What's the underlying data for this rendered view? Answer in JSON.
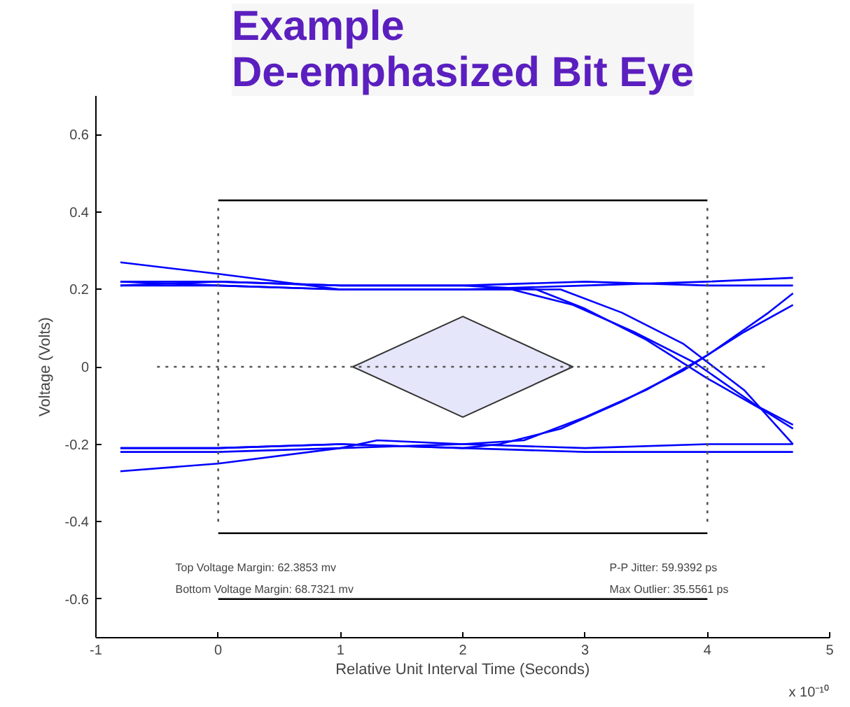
{
  "chart_data": {
    "type": "line",
    "title": "Example\nDe-emphasized Bit Eye",
    "xlabel": "Relative Unit Interval Time (Seconds)",
    "ylabel": "Voltage (Volts)",
    "xlim": [
      -1,
      5
    ],
    "xticks": [
      -1,
      0,
      1,
      2,
      3,
      4,
      5
    ],
    "ylim": [
      -0.7,
      0.7
    ],
    "yticks": [
      -0.6,
      -0.4,
      -0.2,
      0,
      0.2,
      0.4,
      0.6
    ],
    "grid": false,
    "marker": "none",
    "line_style": "solid",
    "annotations": [
      "Top Voltage Margin:    62.3853 mv",
      "Bottom Voltage Margin: 68.7321 mv",
      "P-P Jitter:      59.9392 ps",
      "Max Outlier: 35.5561 ps",
      "x 10⁻¹⁰"
    ],
    "series": [
      {
        "color": "#0000ff",
        "x": [
          -0.8,
          0,
          1,
          2,
          3,
          4,
          4.7
        ],
        "values": [
          0.27,
          0.24,
          0.2,
          0.2,
          0.21,
          0.22,
          0.23
        ]
      },
      {
        "color": "#0000ff",
        "x": [
          -0.8,
          0,
          1,
          2,
          3,
          4,
          4.7
        ],
        "values": [
          0.22,
          0.22,
          0.21,
          0.21,
          0.22,
          0.21,
          0.21
        ]
      },
      {
        "color": "#0000ff",
        "x": [
          -0.8,
          0,
          1,
          2,
          2.6,
          3,
          3.5,
          4,
          4.5,
          4.7
        ],
        "values": [
          0.21,
          0.22,
          0.21,
          0.21,
          0.2,
          0.15,
          0.07,
          -0.03,
          -0.12,
          -0.16
        ]
      },
      {
        "color": "#0000ff",
        "x": [
          -0.8,
          0,
          1,
          2,
          2.4,
          2.9,
          3.4,
          3.9,
          4.4,
          4.7
        ],
        "values": [
          0.22,
          0.21,
          0.2,
          0.2,
          0.2,
          0.16,
          0.09,
          0.01,
          -0.1,
          -0.15
        ]
      },
      {
        "color": "#0000ff",
        "x": [
          -0.8,
          0,
          1,
          2,
          2.8,
          3.3,
          3.8,
          4.3,
          4.7
        ],
        "values": [
          0.21,
          0.21,
          0.2,
          0.2,
          0.2,
          0.14,
          0.06,
          -0.06,
          -0.2
        ]
      },
      {
        "color": "#0000ff",
        "x": [
          -0.8,
          0,
          1,
          1.3,
          2,
          3,
          4,
          4.7
        ],
        "values": [
          -0.27,
          -0.25,
          -0.21,
          -0.19,
          -0.2,
          -0.21,
          -0.2,
          -0.2
        ]
      },
      {
        "color": "#0000ff",
        "x": [
          -0.8,
          0,
          1,
          2,
          3,
          4,
          4.7
        ],
        "values": [
          -0.21,
          -0.21,
          -0.2,
          -0.21,
          -0.22,
          -0.22,
          -0.22
        ]
      },
      {
        "color": "#0000ff",
        "x": [
          -0.8,
          0,
          1,
          2,
          2.3,
          2.8,
          3.3,
          3.8,
          4.3,
          4.7
        ],
        "values": [
          -0.21,
          -0.21,
          -0.2,
          -0.21,
          -0.2,
          -0.16,
          -0.09,
          -0.01,
          0.09,
          0.16
        ]
      },
      {
        "color": "#0000ff",
        "x": [
          -0.8,
          0,
          1,
          2,
          2.5,
          3,
          3.5,
          4,
          4.5,
          4.7
        ],
        "values": [
          -0.22,
          -0.22,
          -0.21,
          -0.2,
          -0.19,
          -0.13,
          -0.06,
          0.03,
          0.14,
          0.19
        ]
      },
      {
        "type": "area",
        "color": "#e6e6fa",
        "x": [
          1.1,
          2,
          2.9,
          2,
          1.1
        ],
        "values": [
          0,
          0.13,
          0,
          -0.13,
          0
        ]
      },
      {
        "color": "#000000",
        "x": [
          0,
          4
        ],
        "values": [
          0.43,
          0.43
        ]
      },
      {
        "color": "#000000",
        "x": [
          0,
          4
        ],
        "values": [
          -0.43,
          -0.43
        ]
      },
      {
        "color": "#000000",
        "x": [
          0,
          4
        ],
        "values": [
          -0.6,
          -0.6
        ]
      },
      {
        "color": "#555555",
        "line_style": "dotted",
        "x": [
          0,
          0
        ],
        "values": [
          -0.4,
          0.42
        ]
      },
      {
        "color": "#555555",
        "line_style": "dotted",
        "x": [
          4,
          4
        ],
        "values": [
          -0.4,
          0.42
        ]
      },
      {
        "color": "#555555",
        "line_style": "dotted",
        "x": [
          -0.5,
          4.5
        ],
        "values": [
          0,
          0
        ]
      }
    ]
  }
}
